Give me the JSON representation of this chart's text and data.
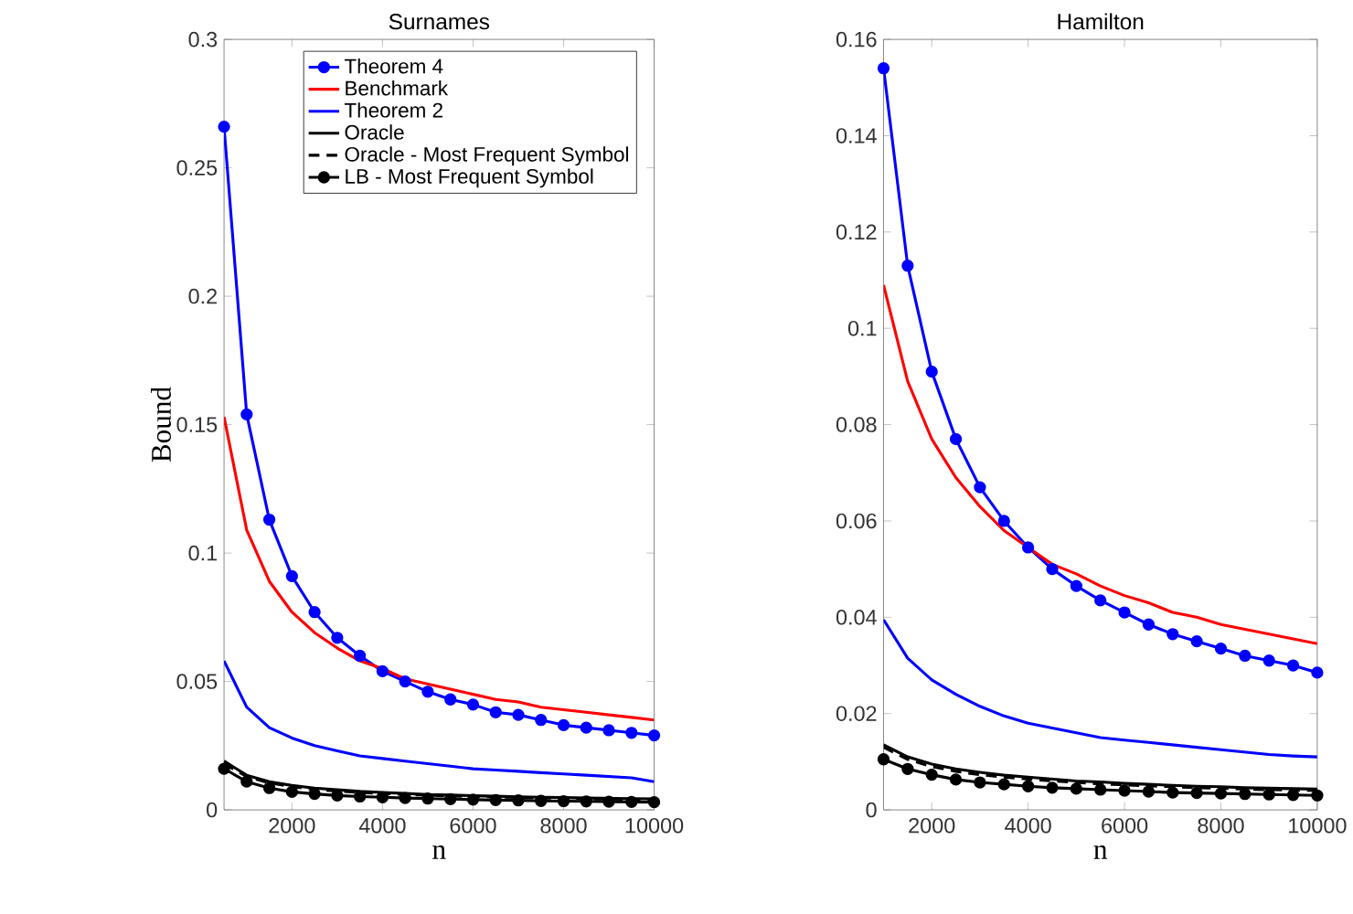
{
  "chart_data": [
    {
      "type": "line",
      "title": "Surnames",
      "xlabel": "n",
      "ylabel": "Bound",
      "xlim": [
        500,
        10000
      ],
      "ylim": [
        0,
        0.3
      ],
      "xticks": [
        2000,
        4000,
        6000,
        8000,
        10000
      ],
      "yticks": [
        0,
        0.05,
        0.1,
        0.15,
        0.2,
        0.25,
        0.3
      ],
      "legend": "top right",
      "grid": false,
      "x": [
        500,
        1000,
        1500,
        2000,
        2500,
        3000,
        3500,
        4000,
        4500,
        5000,
        5500,
        6000,
        6500,
        7000,
        7500,
        8000,
        8500,
        9000,
        9500,
        10000
      ],
      "series": [
        {
          "name": "Theorem 4",
          "color": "#0000ff",
          "marker": "circle",
          "line_style": "solid",
          "values": [
            0.266,
            0.154,
            0.113,
            0.091,
            0.077,
            0.067,
            0.06,
            0.054,
            0.05,
            0.046,
            0.043,
            0.041,
            0.038,
            0.037,
            0.035,
            0.033,
            0.032,
            0.031,
            0.03,
            0.029
          ]
        },
        {
          "name": "Benchmark",
          "color": "#ff0000",
          "marker": "none",
          "line_style": "solid",
          "values": [
            0.153,
            0.109,
            0.089,
            0.077,
            0.069,
            0.063,
            0.058,
            0.055,
            0.051,
            0.049,
            0.047,
            0.045,
            0.043,
            0.042,
            0.04,
            0.039,
            0.038,
            0.037,
            0.036,
            0.035
          ]
        },
        {
          "name": "Theorem 2",
          "color": "#0000ff",
          "marker": "none",
          "line_style": "solid",
          "values": [
            0.058,
            0.04,
            0.032,
            0.028,
            0.025,
            0.023,
            0.021,
            0.02,
            0.019,
            0.018,
            0.017,
            0.016,
            0.0155,
            0.015,
            0.0145,
            0.014,
            0.0135,
            0.013,
            0.0125,
            0.011
          ]
        },
        {
          "name": "Oracle",
          "color": "#000000",
          "marker": "none",
          "line_style": "solid",
          "values": [
            0.019,
            0.0135,
            0.011,
            0.0095,
            0.0085,
            0.0078,
            0.0072,
            0.0068,
            0.0064,
            0.006,
            0.0058,
            0.0055,
            0.0053,
            0.0051,
            0.0049,
            0.0048,
            0.0046,
            0.0045,
            0.0044,
            0.0043
          ]
        },
        {
          "name": "Oracle - Most Frequent Symbol",
          "color": "#000000",
          "marker": "none",
          "line_style": "dashed",
          "values": [
            0.018,
            0.013,
            0.0105,
            0.009,
            0.008,
            0.0073,
            0.0068,
            0.0064,
            0.006,
            0.0057,
            0.0054,
            0.0052,
            0.005,
            0.0048,
            0.0046,
            0.0045,
            0.0043,
            0.0042,
            0.0041,
            0.004
          ]
        },
        {
          "name": "LB - Most Frequent Symbol",
          "color": "#000000",
          "marker": "circle",
          "line_style": "solid",
          "values": [
            0.016,
            0.011,
            0.0085,
            0.007,
            0.0062,
            0.0056,
            0.0052,
            0.0049,
            0.0046,
            0.0044,
            0.0042,
            0.004,
            0.0038,
            0.0037,
            0.0035,
            0.0034,
            0.0033,
            0.0032,
            0.0031,
            0.003
          ]
        }
      ]
    },
    {
      "type": "line",
      "title": "Hamilton",
      "xlabel": "n",
      "xlim": [
        1000,
        10000
      ],
      "ylim": [
        0,
        0.16
      ],
      "xticks": [
        2000,
        4000,
        6000,
        8000,
        10000
      ],
      "yticks": [
        0,
        0.02,
        0.04,
        0.06,
        0.08,
        0.1,
        0.12,
        0.14,
        0.16
      ],
      "legend": false,
      "grid": false,
      "x": [
        1000,
        1500,
        2000,
        2500,
        3000,
        3500,
        4000,
        4500,
        5000,
        5500,
        6000,
        6500,
        7000,
        7500,
        8000,
        8500,
        9000,
        9500,
        10000
      ],
      "series": [
        {
          "color": "#0000ff",
          "marker": "circle",
          "line_style": "solid",
          "values": [
            0.154,
            0.113,
            0.091,
            0.077,
            0.067,
            0.06,
            0.0545,
            0.05,
            0.0465,
            0.0435,
            0.041,
            0.0385,
            0.0365,
            0.035,
            0.0335,
            0.032,
            0.031,
            0.03,
            0.0285
          ]
        },
        {
          "color": "#ff0000",
          "marker": "none",
          "line_style": "solid",
          "values": [
            0.109,
            0.089,
            0.077,
            0.069,
            0.063,
            0.058,
            0.0545,
            0.051,
            0.049,
            0.0465,
            0.0445,
            0.043,
            0.041,
            0.04,
            0.0385,
            0.0375,
            0.0365,
            0.0355,
            0.0345
          ]
        },
        {
          "color": "#0000ff",
          "marker": "none",
          "line_style": "solid",
          "values": [
            0.0395,
            0.0315,
            0.027,
            0.024,
            0.0215,
            0.0195,
            0.018,
            0.017,
            0.016,
            0.015,
            0.0145,
            0.014,
            0.0135,
            0.013,
            0.0125,
            0.012,
            0.0115,
            0.0112,
            0.011
          ]
        },
        {
          "color": "#000000",
          "marker": "none",
          "line_style": "solid",
          "values": [
            0.0135,
            0.011,
            0.0095,
            0.0085,
            0.0078,
            0.0072,
            0.0068,
            0.0064,
            0.006,
            0.0058,
            0.0055,
            0.0053,
            0.0051,
            0.0049,
            0.0048,
            0.0046,
            0.0045,
            0.0044,
            0.0043
          ]
        },
        {
          "color": "#000000",
          "marker": "none",
          "line_style": "dashed",
          "values": [
            0.013,
            0.0105,
            0.009,
            0.008,
            0.0073,
            0.0068,
            0.0064,
            0.006,
            0.0057,
            0.0054,
            0.0052,
            0.005,
            0.0048,
            0.0046,
            0.0045,
            0.0043,
            0.0042,
            0.0041,
            0.004
          ]
        },
        {
          "color": "#000000",
          "marker": "circle",
          "line_style": "solid",
          "values": [
            0.0105,
            0.0085,
            0.0073,
            0.0063,
            0.0057,
            0.0053,
            0.0049,
            0.0046,
            0.0044,
            0.0042,
            0.004,
            0.0038,
            0.0036,
            0.0035,
            0.0034,
            0.0033,
            0.0032,
            0.0031,
            0.003
          ]
        }
      ]
    }
  ]
}
